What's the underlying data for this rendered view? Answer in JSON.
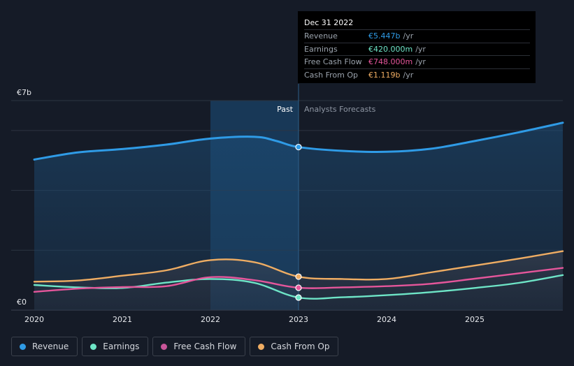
{
  "tooltip": {
    "date": "Dec 31 2022",
    "rows": [
      {
        "label": "Revenue",
        "value": "€5.447b",
        "unit": "/yr",
        "color": "#2f9be6"
      },
      {
        "label": "Earnings",
        "value": "€420.000m",
        "unit": "/yr",
        "color": "#6ee5c7"
      },
      {
        "label": "Free Cash Flow",
        "value": "€748.000m",
        "unit": "/yr",
        "color": "#e5569b"
      },
      {
        "label": "Cash From Op",
        "value": "€1.119b",
        "unit": "/yr",
        "color": "#efad63"
      }
    ]
  },
  "legend": [
    {
      "label": "Revenue",
      "color": "#2f9be6"
    },
    {
      "label": "Earnings",
      "color": "#6ee5c7"
    },
    {
      "label": "Free Cash Flow",
      "color": "#c8559a"
    },
    {
      "label": "Cash From Op",
      "color": "#efad63"
    }
  ],
  "chart_data": {
    "type": "line",
    "y_max_label": "€7b",
    "y_min_label": "€0",
    "ylim": [
      0,
      7.0
    ],
    "xlim": [
      2020.0,
      2026.0
    ],
    "x_ticks": [
      2020,
      2021,
      2022,
      2023,
      2024,
      2025
    ],
    "divider_x": 2023.0,
    "highlight_range": [
      2022.0,
      2023.0
    ],
    "past_label": "Past",
    "forecast_label": "Analysts Forecasts",
    "series": [
      {
        "name": "Revenue",
        "color": "#2f9be6",
        "points": [
          [
            2020.0,
            5.03
          ],
          [
            2020.5,
            5.27
          ],
          [
            2021.0,
            5.38
          ],
          [
            2021.5,
            5.53
          ],
          [
            2022.0,
            5.73
          ],
          [
            2022.5,
            5.79
          ],
          [
            2022.75,
            5.65
          ],
          [
            2023.0,
            5.447
          ],
          [
            2023.5,
            5.32
          ],
          [
            2024.0,
            5.29
          ],
          [
            2024.5,
            5.39
          ],
          [
            2025.0,
            5.65
          ],
          [
            2025.5,
            5.94
          ],
          [
            2026.0,
            6.26
          ]
        ]
      },
      {
        "name": "Earnings",
        "color": "#6ee5c7",
        "points": [
          [
            2020.0,
            0.84
          ],
          [
            2020.5,
            0.76
          ],
          [
            2021.0,
            0.74
          ],
          [
            2021.5,
            0.92
          ],
          [
            2022.0,
            1.04
          ],
          [
            2022.5,
            0.91
          ],
          [
            2023.0,
            0.42
          ],
          [
            2023.5,
            0.43
          ],
          [
            2024.0,
            0.5
          ],
          [
            2024.5,
            0.6
          ],
          [
            2025.0,
            0.74
          ],
          [
            2025.5,
            0.91
          ],
          [
            2026.0,
            1.17
          ]
        ]
      },
      {
        "name": "Free Cash Flow",
        "color": "#e5569b",
        "points": [
          [
            2020.0,
            0.61
          ],
          [
            2020.5,
            0.72
          ],
          [
            2021.0,
            0.77
          ],
          [
            2021.5,
            0.8
          ],
          [
            2022.0,
            1.1
          ],
          [
            2022.5,
            1.0
          ],
          [
            2023.0,
            0.748
          ],
          [
            2023.5,
            0.76
          ],
          [
            2024.0,
            0.8
          ],
          [
            2024.5,
            0.88
          ],
          [
            2025.0,
            1.05
          ],
          [
            2025.5,
            1.23
          ],
          [
            2026.0,
            1.41
          ]
        ]
      },
      {
        "name": "Cash From Op",
        "color": "#efad63",
        "points": [
          [
            2020.0,
            0.95
          ],
          [
            2020.5,
            0.99
          ],
          [
            2021.0,
            1.15
          ],
          [
            2021.5,
            1.33
          ],
          [
            2022.0,
            1.67
          ],
          [
            2022.5,
            1.6
          ],
          [
            2023.0,
            1.119
          ],
          [
            2023.5,
            1.04
          ],
          [
            2024.0,
            1.04
          ],
          [
            2024.5,
            1.26
          ],
          [
            2025.0,
            1.49
          ],
          [
            2025.5,
            1.72
          ],
          [
            2026.0,
            1.97
          ]
        ]
      }
    ]
  }
}
